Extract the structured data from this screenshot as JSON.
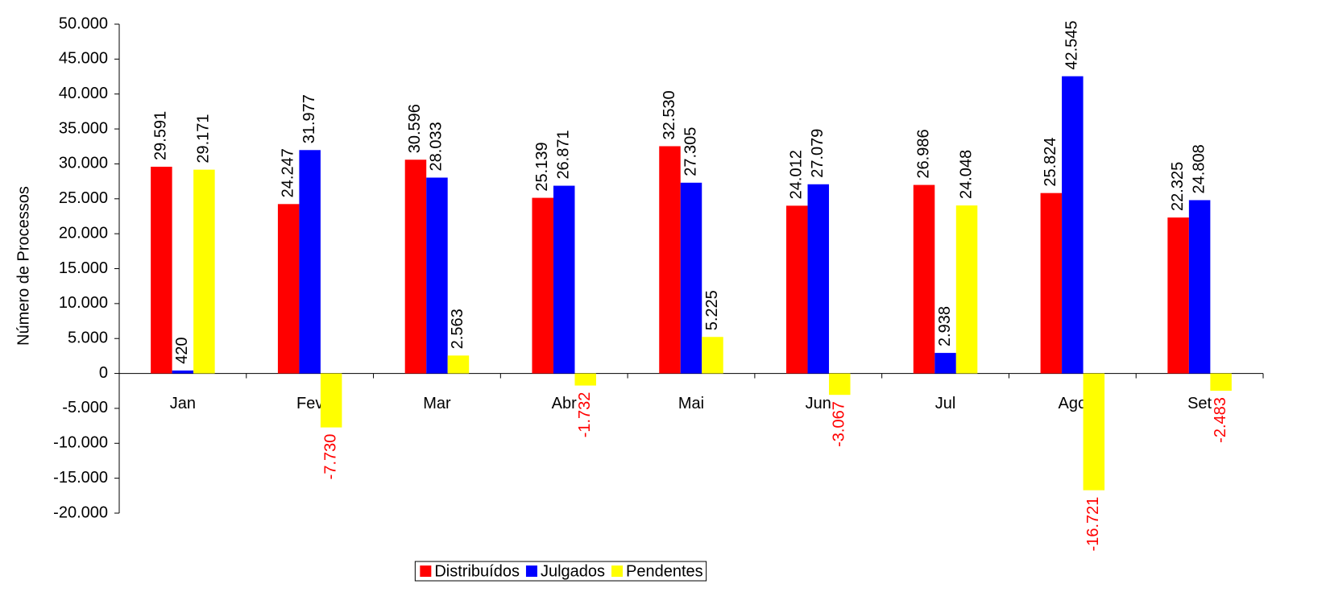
{
  "chart_data": {
    "type": "bar",
    "y_label": "Número de Processos",
    "categories": [
      "Jan",
      "Fev",
      "Mar",
      "Abr",
      "Mai",
      "Jun",
      "Jul",
      "Ago",
      "Set"
    ],
    "series": [
      {
        "name": "Distribuídos",
        "color": "#ff0000",
        "values": [
          29591,
          24247,
          30596,
          25139,
          32530,
          24012,
          26986,
          25824,
          22325
        ],
        "value_labels": [
          "29.591",
          "24.247",
          "30.596",
          "25.139",
          "32.530",
          "24.012",
          "26.986",
          "25.824",
          "22.325"
        ]
      },
      {
        "name": "Julgados",
        "color": "#0000ff",
        "values": [
          420,
          31977,
          28033,
          26871,
          27305,
          27079,
          2938,
          42545,
          24808
        ],
        "value_labels": [
          "420",
          "31.977",
          "28.033",
          "26.871",
          "27.305",
          "27.079",
          "2.938",
          "42.545",
          "24.808"
        ]
      },
      {
        "name": "Pendentes",
        "color": "#ffff00",
        "values": [
          29171,
          -7730,
          2563,
          -1732,
          5225,
          -3067,
          24048,
          -16721,
          -2483
        ],
        "value_labels": [
          "29.171",
          "-7.730",
          "2.563",
          "-1.732",
          "5.225",
          "-3.067",
          "24.048",
          "-16.721",
          "-2.483"
        ]
      }
    ],
    "negative_label_color": "#ff0000",
    "ylim": [
      -20000,
      50000
    ],
    "yticks": [
      {
        "value": -20000,
        "label": "-20.000"
      },
      {
        "value": -15000,
        "label": "-15.000"
      },
      {
        "value": -10000,
        "label": "-10.000"
      },
      {
        "value": -5000,
        "label": "-5.000"
      },
      0,
      {
        "value": 5000,
        "label": "5.000"
      },
      {
        "value": 10000,
        "label": "10.000"
      },
      {
        "value": 15000,
        "label": "15.000"
      },
      {
        "value": 20000,
        "label": "20.000"
      },
      {
        "value": 25000,
        "label": "25.000"
      },
      {
        "value": 30000,
        "label": "30.000"
      },
      {
        "value": 35000,
        "label": "35.000"
      },
      {
        "value": 40000,
        "label": "40.000"
      },
      {
        "value": 45000,
        "label": "45.000"
      },
      {
        "value": 50000,
        "label": "50.000"
      }
    ],
    "grid": false,
    "legend": "bottom"
  }
}
